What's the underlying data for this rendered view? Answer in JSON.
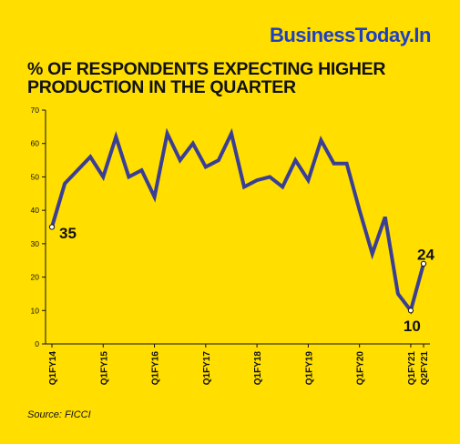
{
  "brand": "BusinessToday.In",
  "source": "Source: FICCI",
  "colors": {
    "background": "#FFDE00",
    "line": "#3B3F94",
    "brand": "#1F3FC2",
    "text": "#111111"
  },
  "chart_data": {
    "type": "line",
    "title": "% OF RESPONDENTS EXPECTING HIGHER PRODUCTION IN THE QUARTER",
    "ylim": [
      0,
      70
    ],
    "yticks": [
      0,
      10,
      20,
      30,
      40,
      50,
      60,
      70
    ],
    "grid": false,
    "x_tick_labels": [
      {
        "index": 0,
        "label": "Q1FY14"
      },
      {
        "index": 4,
        "label": "Q1FY15"
      },
      {
        "index": 8,
        "label": "Q1FY16"
      },
      {
        "index": 12,
        "label": "Q1FY17"
      },
      {
        "index": 16,
        "label": "Q1FY18"
      },
      {
        "index": 20,
        "label": "Q1FY19"
      },
      {
        "index": 24,
        "label": "Q1FY20"
      },
      {
        "index": 28,
        "label": "Q1FY21"
      },
      {
        "index": 29,
        "label": "Q2FY21"
      }
    ],
    "series": [
      {
        "values": [
          35,
          48,
          52,
          56,
          50,
          62,
          50,
          52,
          44,
          63,
          55,
          60,
          53,
          55,
          63,
          47,
          49,
          50,
          47,
          55,
          49,
          61,
          54,
          54,
          40,
          27,
          38,
          15,
          10,
          24
        ]
      }
    ],
    "data_labels": [
      {
        "index": 0,
        "text": "35"
      },
      {
        "index": 28,
        "text": "10"
      },
      {
        "index": 29,
        "text": "24"
      }
    ]
  }
}
